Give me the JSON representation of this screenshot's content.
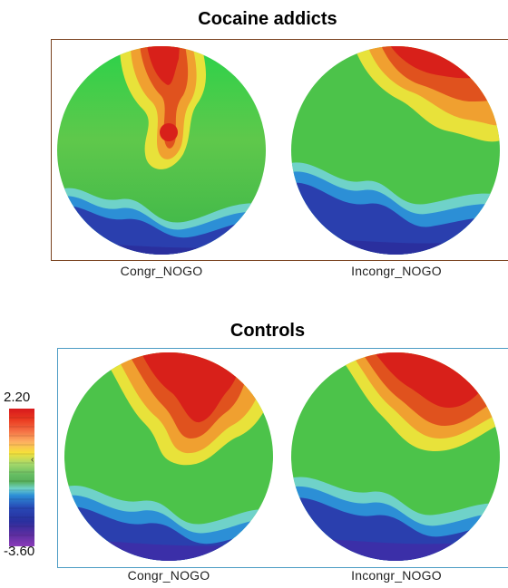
{
  "groups": [
    {
      "title": "Cocaine addicts",
      "maps": [
        {
          "label": "Congr_NOGO",
          "variant": "cocaine-congr"
        },
        {
          "label": "Incongr_NOGO",
          "variant": "cocaine-incongr"
        }
      ]
    },
    {
      "title": "Controls",
      "maps": [
        {
          "label": "Congr_NOGO",
          "variant": "control-congr"
        },
        {
          "label": "Incongr_NOGO",
          "variant": "control-incongr"
        }
      ]
    }
  ],
  "color_scale": {
    "max_label": "2.20",
    "min_label": "-3.60",
    "colors": [
      "#d7191c",
      "#fdae61",
      "#f6e03a",
      "#66bd63",
      "#6fd2c9",
      "#2c8fd6",
      "#2a2f9e",
      "#8a3bb8"
    ]
  },
  "frame_colors": {
    "cocaine": "#7a4320",
    "controls": "#4b9cc4"
  }
}
